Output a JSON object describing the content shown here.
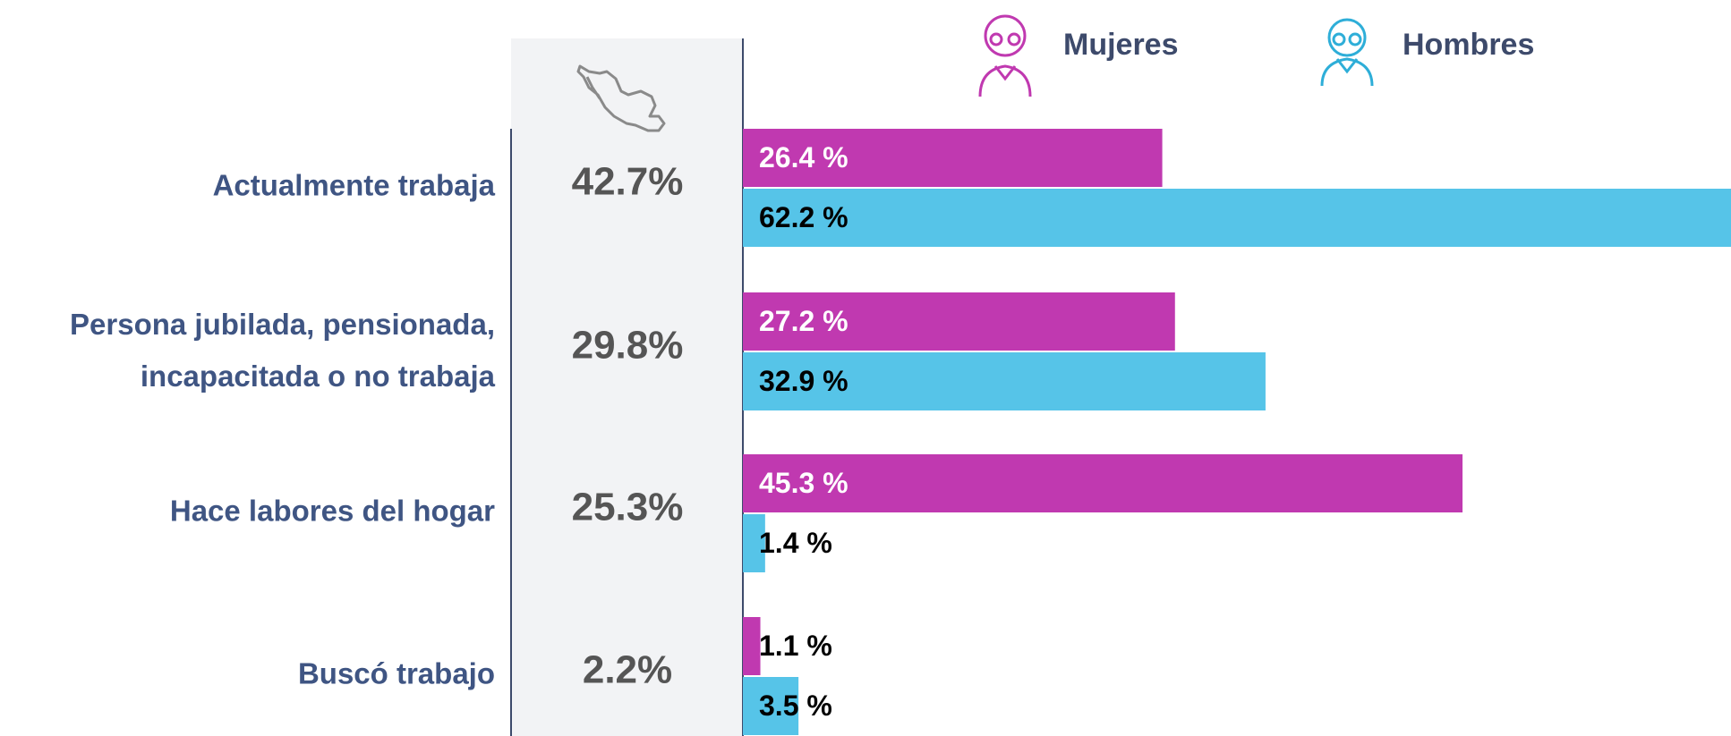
{
  "chart_data": {
    "type": "bar",
    "orientation": "horizontal",
    "categories": [
      "Actualmente trabaja",
      "Persona jubilada, pensionada, incapacitada o no trabaja",
      "Hace labores del hogar",
      "Buscó trabajo"
    ],
    "totals": [
      "42.7%",
      "29.8%",
      "25.3%",
      "2.2%"
    ],
    "series": [
      {
        "name": "Mujeres",
        "color": "#c039b0",
        "values": [
          26.4,
          27.2,
          45.3,
          1.1
        ],
        "value_labels": [
          "26.4 %",
          "27.2 %",
          "45.3 %",
          "1.1 %"
        ]
      },
      {
        "name": "Hombres",
        "color": "#56c4e8",
        "values": [
          62.2,
          32.9,
          1.4,
          3.5
        ],
        "value_labels": [
          "62.2 %",
          "32.9 %",
          "1.4 %",
          "3.5 %"
        ]
      }
    ]
  }
}
